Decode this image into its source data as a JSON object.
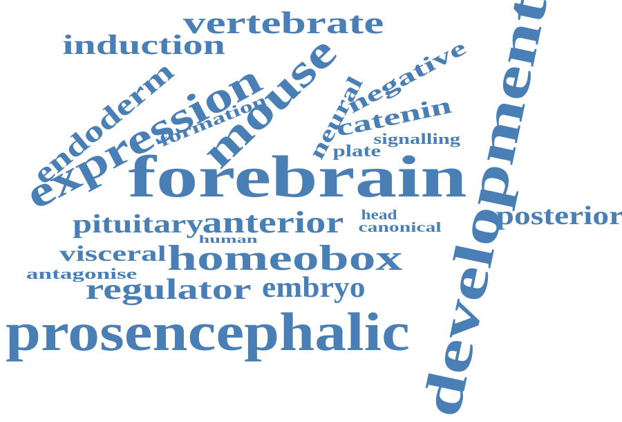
{
  "word_cloud": {
    "color": "#4a7fb5",
    "words": [
      {
        "text": "forebrain"
      },
      {
        "text": "prosencephalic"
      },
      {
        "text": "development"
      },
      {
        "text": "expression"
      },
      {
        "text": "mouse"
      },
      {
        "text": "homeobox"
      },
      {
        "text": "vertebrate"
      },
      {
        "text": "anterior"
      },
      {
        "text": "regulator"
      },
      {
        "text": "embryo"
      },
      {
        "text": "induction"
      },
      {
        "text": "endoderm"
      },
      {
        "text": "pituitary"
      },
      {
        "text": "posterior"
      },
      {
        "text": "visceral"
      },
      {
        "text": "negative"
      },
      {
        "text": "catenin"
      },
      {
        "text": "neural"
      },
      {
        "text": "formation"
      },
      {
        "text": "antagonise"
      },
      {
        "text": "signalling"
      },
      {
        "text": "plate"
      },
      {
        "text": "canonical"
      },
      {
        "text": "head"
      },
      {
        "text": "human"
      }
    ]
  }
}
